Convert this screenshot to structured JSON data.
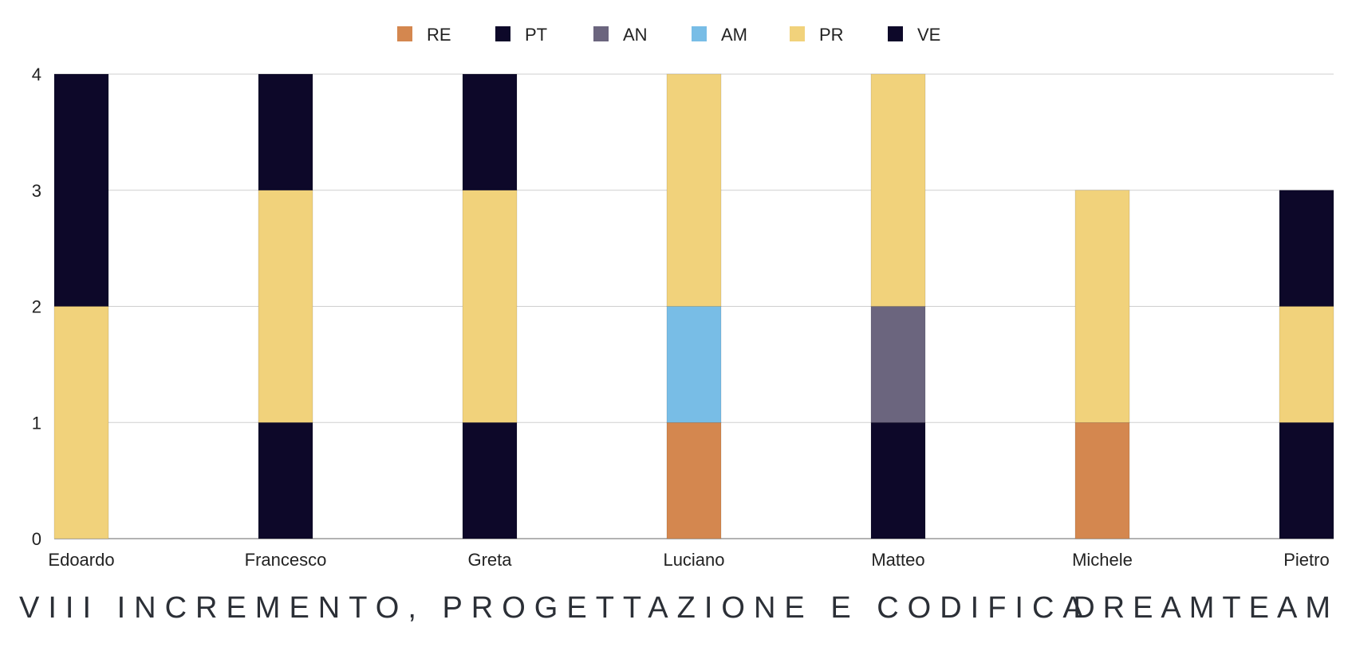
{
  "chart_data": {
    "type": "bar",
    "stacked": true,
    "categories": [
      "Edoardo",
      "Francesco",
      "Greta",
      "Luciano",
      "Matteo",
      "Michele",
      "Pietro"
    ],
    "series": [
      {
        "name": "RE",
        "color": "#d4874f",
        "values": [
          0,
          0,
          0,
          1,
          0,
          1,
          0
        ]
      },
      {
        "name": "PT",
        "color": "#0d0829",
        "values": [
          0,
          1,
          1,
          0,
          1,
          0,
          1
        ]
      },
      {
        "name": "AN",
        "color": "#6b657e",
        "values": [
          0,
          0,
          0,
          0,
          1,
          0,
          0
        ]
      },
      {
        "name": "AM",
        "color": "#78bde6",
        "values": [
          0,
          0,
          0,
          1,
          0,
          0,
          0
        ]
      },
      {
        "name": "PR",
        "color": "#f1d27b",
        "values": [
          2,
          2,
          2,
          2,
          2,
          2,
          1
        ]
      },
      {
        "name": "VE",
        "color": "#0d0829",
        "values": [
          2,
          1,
          1,
          0,
          0,
          0,
          1
        ]
      }
    ],
    "ylim": [
      0,
      4
    ],
    "yticks": [
      0,
      1,
      2,
      3,
      4
    ],
    "grid": true,
    "legend": "top-center"
  },
  "footer": {
    "left": "VIII INCREMENTO, PROGETTAZIONE E CODIFICA",
    "right": "DREAMTEAM"
  }
}
